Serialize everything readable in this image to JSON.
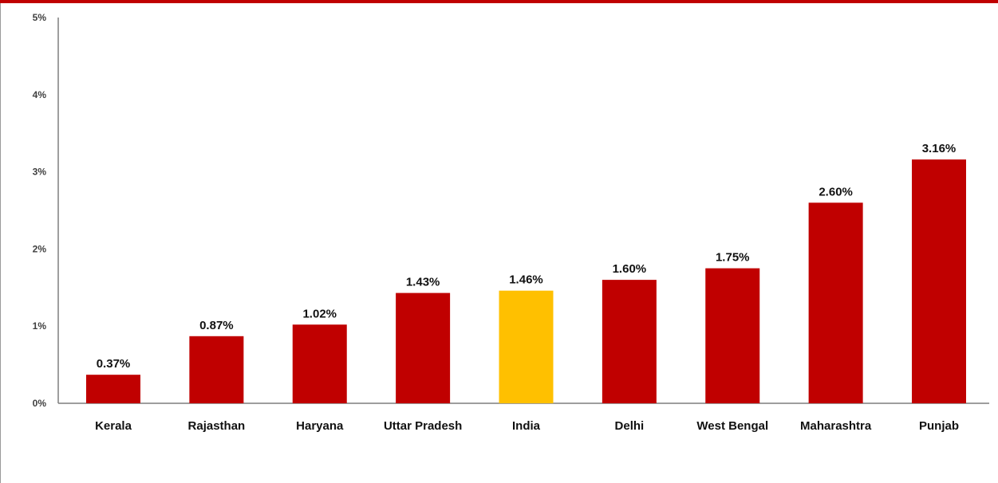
{
  "chart_data": {
    "type": "bar",
    "title": "",
    "xlabel": "",
    "ylabel": "",
    "categories": [
      "Kerala",
      "Rajasthan",
      "Haryana",
      "Uttar Pradesh",
      "India",
      "Delhi",
      "West Bengal",
      "Maharashtra",
      "Punjab"
    ],
    "values": [
      0.37,
      0.87,
      1.02,
      1.43,
      1.46,
      1.6,
      1.75,
      2.6,
      3.16
    ],
    "data_labels": [
      "0.37%",
      "0.87%",
      "1.02%",
      "1.43%",
      "1.46%",
      "1.60%",
      "1.75%",
      "2.60%",
      "3.16%"
    ],
    "ylim": [
      0,
      5
    ],
    "y_ticks": [
      0,
      1,
      2,
      3,
      4,
      5
    ],
    "y_tick_labels": [
      "0%",
      "1%",
      "2%",
      "3%",
      "4%",
      "5%"
    ],
    "grid": false,
    "legend": "none",
    "colors": {
      "bar": "#c00000",
      "highlight": "#ffc000",
      "highlight_category": "India",
      "top_rule": "#c00000",
      "axis": "#7f7f7f"
    }
  }
}
